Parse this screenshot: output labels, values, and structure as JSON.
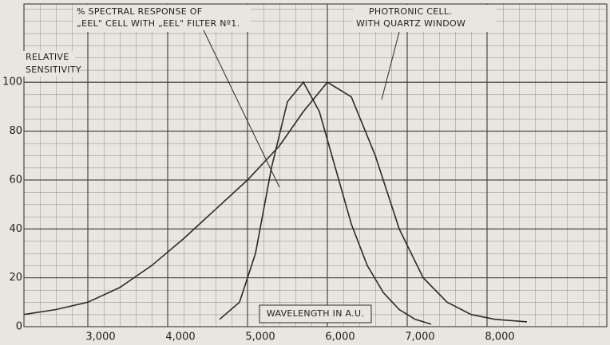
{
  "chart_data": {
    "type": "line",
    "y_label_lines": [
      "RELATIVE",
      "SENSITIVITY"
    ],
    "x_label": "WAVELENGTH IN A.U.",
    "xlim": [
      2200,
      9500
    ],
    "ylim": [
      0,
      132
    ],
    "xticks": [
      {
        "value": 3000,
        "label": "3,000"
      },
      {
        "value": 4000,
        "label": "4,000"
      },
      {
        "value": 5000,
        "label": "5,000"
      },
      {
        "value": 6000,
        "label": "6,000"
      },
      {
        "value": 7000,
        "label": "7,000"
      },
      {
        "value": 8000,
        "label": "8,000"
      }
    ],
    "yticks": [
      0,
      20,
      40,
      60,
      80,
      100
    ],
    "grid": true,
    "series": [
      {
        "label_lines": [
          "PHOTRONIC CELL.",
          "WITH QUARTZ WINDOW"
        ],
        "color": "#2a2a2a",
        "x": [
          2200,
          2600,
          3000,
          3400,
          3800,
          4200,
          4600,
          5000,
          5400,
          5700,
          6000,
          6300,
          6600,
          6900,
          7200,
          7500,
          7800,
          8100,
          8500
        ],
        "values": [
          5,
          7,
          10,
          16,
          25,
          36,
          48,
          60,
          74,
          88,
          100,
          94,
          70,
          40,
          20,
          10,
          5,
          3,
          2
        ]
      },
      {
        "label_lines": [
          "% SPECTRAL RESPONSE OF",
          "„EEL\" CELL WITH „EEL\" FILTER Nº1."
        ],
        "color": "#2a2a2a",
        "x": [
          4650,
          4900,
          5100,
          5300,
          5500,
          5700,
          5900,
          6100,
          6300,
          6500,
          6700,
          6900,
          7100,
          7300
        ],
        "values": [
          3,
          10,
          30,
          65,
          92,
          100,
          88,
          65,
          42,
          25,
          14,
          7,
          3,
          1
        ]
      }
    ]
  }
}
